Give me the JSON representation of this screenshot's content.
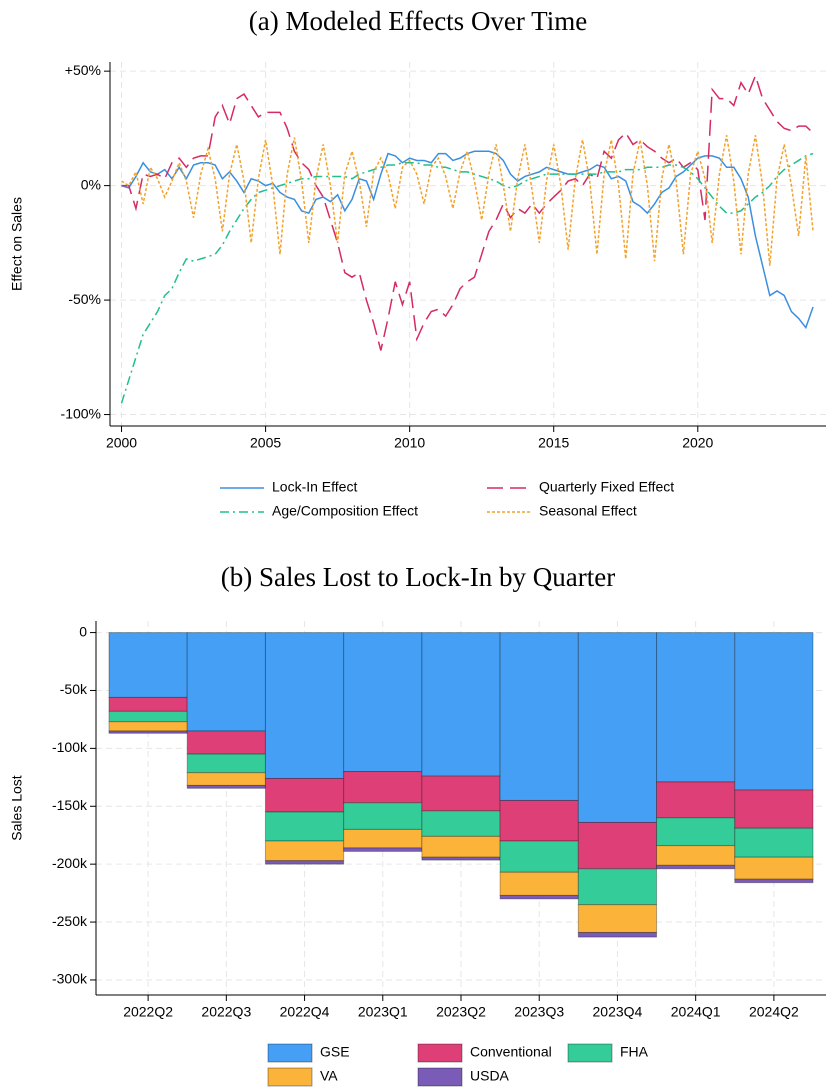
{
  "chart_data": [
    {
      "type": "line",
      "title": "(a) Modeled Effects Over Time",
      "y_label": "Effect on Sales",
      "x": [
        2000,
        2000.25,
        2000.5,
        2000.75,
        2001,
        2001.25,
        2001.5,
        2001.75,
        2002,
        2002.25,
        2002.5,
        2002.75,
        2003,
        2003.25,
        2003.5,
        2003.75,
        2004,
        2004.25,
        2004.5,
        2004.75,
        2005,
        2005.25,
        2005.5,
        2005.75,
        2006,
        2006.25,
        2006.5,
        2006.75,
        2007,
        2007.25,
        2007.5,
        2007.75,
        2008,
        2008.25,
        2008.5,
        2008.75,
        2009,
        2009.25,
        2009.5,
        2009.75,
        2010,
        2010.25,
        2010.5,
        2010.75,
        2011,
        2011.25,
        2011.5,
        2011.75,
        2012,
        2012.25,
        2012.5,
        2012.75,
        2013,
        2013.25,
        2013.5,
        2013.75,
        2014,
        2014.25,
        2014.5,
        2014.75,
        2015,
        2015.25,
        2015.5,
        2015.75,
        2016,
        2016.25,
        2016.5,
        2016.75,
        2017,
        2017.25,
        2017.5,
        2017.75,
        2018,
        2018.25,
        2018.5,
        2018.75,
        2019,
        2019.25,
        2019.5,
        2019.75,
        2020,
        2020.25,
        2020.5,
        2020.75,
        2021,
        2021.25,
        2021.5,
        2021.75,
        2022,
        2022.25,
        2022.5,
        2022.75,
        2023,
        2023.25,
        2023.5,
        2023.75,
        2024
      ],
      "series": [
        {
          "name": "Lock-In Effect",
          "color": "#3a8fe0",
          "line_style": "solid",
          "values": [
            0,
            -1,
            4,
            10,
            6,
            5,
            7,
            3,
            8,
            3,
            9,
            10,
            10,
            9,
            3,
            6,
            2,
            -3,
            3,
            2,
            0,
            1,
            -3,
            -5,
            -6,
            -11,
            -12,
            -6,
            -5,
            -7,
            -4,
            -11,
            -6,
            3,
            2,
            -6,
            5,
            14,
            13,
            10,
            12,
            11,
            11,
            10,
            14,
            14,
            11,
            12,
            14,
            15,
            15,
            15,
            14,
            11,
            5,
            2,
            4,
            5,
            6,
            8,
            7,
            6,
            5,
            5,
            6,
            7,
            9,
            8,
            3,
            4,
            2,
            -7,
            -9,
            -12,
            -8,
            -3,
            -1,
            4,
            6,
            9,
            12,
            13,
            13,
            12,
            8,
            8,
            3,
            -5,
            -22,
            -35,
            -48,
            -46,
            -48,
            -55,
            -58,
            -62,
            -53
          ]
        },
        {
          "name": "Quarterly Fixed Effect",
          "color": "#d62a64",
          "line_style": "dashed",
          "values": [
            0,
            0,
            -10,
            5,
            4,
            5,
            3,
            10,
            12,
            8,
            12,
            13,
            13,
            30,
            35,
            27,
            38,
            40,
            35,
            30,
            32,
            32,
            32,
            25,
            15,
            10,
            7,
            0,
            -5,
            -15,
            -25,
            -38,
            -40,
            -38,
            -50,
            -60,
            -72,
            -58,
            -42,
            -52,
            -42,
            -67,
            -60,
            -55,
            -54,
            -57,
            -52,
            -45,
            -42,
            -40,
            -30,
            -20,
            -15,
            -8,
            -14,
            -10,
            -12,
            -8,
            -12,
            -8,
            -5,
            -2,
            2,
            3,
            0,
            5,
            3,
            15,
            12,
            20,
            23,
            18,
            20,
            17,
            15,
            12,
            10,
            12,
            8,
            10,
            7,
            -15,
            42,
            38,
            38,
            35,
            45,
            40,
            48,
            38,
            33,
            28,
            25,
            24,
            26,
            26,
            23
          ]
        },
        {
          "name": "Age/Composition Effect",
          "color": "#1fbf8f",
          "line_style": "dashdot",
          "values": [
            -95,
            -85,
            -75,
            -65,
            -60,
            -55,
            -48,
            -45,
            -38,
            -32,
            -33,
            -32,
            -31,
            -30,
            -26,
            -20,
            -15,
            -10,
            -6,
            -3,
            -2,
            -1,
            0,
            1,
            2,
            3,
            3,
            4,
            4,
            4,
            4,
            4,
            3,
            5,
            6,
            7,
            8,
            9,
            9,
            10,
            10,
            10,
            9,
            9,
            8,
            8,
            7,
            6,
            6,
            5,
            4,
            3,
            2,
            0,
            -1,
            0,
            2,
            3,
            4,
            5,
            5,
            5,
            5,
            5,
            5,
            5,
            5,
            6,
            6,
            6,
            7,
            7,
            7,
            8,
            8,
            8,
            9,
            9,
            8,
            6,
            3,
            -1,
            -5,
            -9,
            -12,
            -12,
            -11,
            -8,
            -5,
            -3,
            0,
            4,
            7,
            9,
            11,
            13,
            14
          ]
        },
        {
          "name": "Seasonal Effect",
          "color": "#f2a22c",
          "line_style": "dotted",
          "values": [
            2,
            0,
            6,
            -8,
            8,
            3,
            -5,
            2,
            10,
            2,
            -14,
            5,
            16,
            3,
            -20,
            5,
            18,
            2,
            -25,
            3,
            20,
            0,
            -30,
            5,
            21,
            2,
            -25,
            3,
            18,
            0,
            -25,
            5,
            15,
            2,
            -18,
            6,
            12,
            5,
            -10,
            8,
            11,
            5,
            -8,
            8,
            12,
            4,
            -10,
            6,
            15,
            2,
            -15,
            5,
            18,
            0,
            -20,
            3,
            18,
            -2,
            -25,
            2,
            18,
            0,
            -28,
            3,
            20,
            2,
            -30,
            5,
            20,
            0,
            -32,
            5,
            20,
            0,
            -33,
            3,
            18,
            2,
            -30,
            5,
            15,
            3,
            -25,
            5,
            22,
            2,
            -30,
            5,
            22,
            0,
            -35,
            3,
            18,
            0,
            -22,
            13,
            -20
          ]
        }
      ],
      "xlim": [
        1999.6,
        2024.45
      ],
      "xticks": [
        2000,
        2005,
        2010,
        2015,
        2020
      ],
      "ylim": [
        -105,
        54
      ],
      "yticks": [
        {
          "value": -100,
          "label": "-100%"
        },
        {
          "value": -50,
          "label": "-50%"
        },
        {
          "value": 0,
          "label": "0%"
        },
        {
          "value": 50,
          "label": "+50%"
        }
      ],
      "grid": true,
      "legend": "bottom"
    },
    {
      "type": "stacked_bar",
      "title": "(b) Sales Lost to Lock-In by Quarter",
      "y_label": "Sales Lost",
      "categories": [
        "2022Q2",
        "2022Q3",
        "2022Q4",
        "2023Q1",
        "2023Q2",
        "2023Q3",
        "2023Q4",
        "2024Q1",
        "2024Q2"
      ],
      "series": [
        {
          "name": "GSE",
          "color": "#459ff5",
          "values": [
            -56000,
            -85000,
            -126000,
            -120000,
            -124000,
            -145000,
            -164000,
            -129000,
            -136000
          ]
        },
        {
          "name": "Conventional",
          "color": "#df3f77",
          "values": [
            -12000,
            -20000,
            -29000,
            -27000,
            -30000,
            -35000,
            -40000,
            -31000,
            -33000
          ]
        },
        {
          "name": "FHA",
          "color": "#34cc98",
          "values": [
            -9000,
            -16000,
            -25000,
            -23000,
            -22000,
            -27000,
            -31000,
            -24000,
            -25000
          ]
        },
        {
          "name": "VA",
          "color": "#fbb33a",
          "values": [
            -8000,
            -11000,
            -17000,
            -16000,
            -18000,
            -20000,
            -24000,
            -17000,
            -19000
          ]
        },
        {
          "name": "USDA",
          "color": "#7a5cb8",
          "values": [
            -2000,
            -2500,
            -3000,
            -3000,
            -2500,
            -3000,
            -4000,
            -3000,
            -3000
          ]
        }
      ],
      "ylim": [
        -313000,
        10000
      ],
      "yticks": [
        0,
        {
          "value": -50000,
          "label": "-50k"
        },
        {
          "value": -100000,
          "label": "-100k"
        },
        {
          "value": -150000,
          "label": "-150k"
        },
        {
          "value": -200000,
          "label": "-200k"
        },
        {
          "value": -250000,
          "label": "-250k"
        },
        {
          "value": -300000,
          "label": "-300k"
        }
      ],
      "grid": true,
      "legend": "bottom"
    }
  ]
}
